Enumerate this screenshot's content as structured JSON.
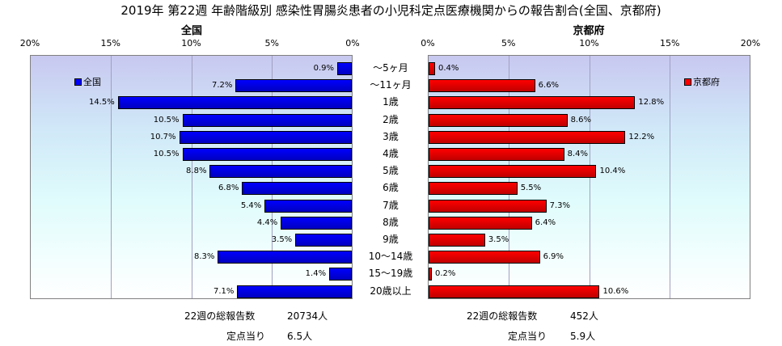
{
  "title": "2019年 第22週 年齢階級別 感染性胃腸炎患者の小児科定点医療機関からの報告割合(全国、京都府)",
  "left_panel": {
    "title": "全国",
    "legend": "全国",
    "ticks": [
      "20%",
      "15%",
      "10%",
      "5%",
      "0%"
    ]
  },
  "right_panel": {
    "title": "京都府",
    "legend": "京都府",
    "ticks": [
      "0%",
      "5%",
      "10%",
      "15%",
      "20%"
    ]
  },
  "colors": {
    "national": "#0000ff",
    "kyoto": "#ff0000"
  },
  "chart_data": {
    "type": "bar",
    "orientation": "horizontal-butterfly",
    "categories": [
      "～5ヶ月",
      "～11ヶ月",
      "1歳",
      "2歳",
      "3歳",
      "4歳",
      "5歳",
      "6歳",
      "7歳",
      "8歳",
      "9歳",
      "10～14歳",
      "15～19歳",
      "20歳以上"
    ],
    "series": [
      {
        "name": "全国",
        "values": [
          0.9,
          7.2,
          14.5,
          10.5,
          10.7,
          10.5,
          8.8,
          6.8,
          5.4,
          4.4,
          3.5,
          8.3,
          1.4,
          7.1
        ],
        "labels": [
          "0.9%",
          "7.2%",
          "14.5%",
          "10.5%",
          "10.7%",
          "10.5%",
          "8.8%",
          "6.8%",
          "5.4%",
          "4.4%",
          "3.5%",
          "8.3%",
          "1.4%",
          "7.1%"
        ]
      },
      {
        "name": "京都府",
        "values": [
          0.4,
          6.6,
          12.8,
          8.6,
          12.2,
          8.4,
          10.4,
          5.5,
          7.3,
          6.4,
          3.5,
          6.9,
          0.2,
          10.6
        ],
        "labels": [
          "0.4%",
          "6.6%",
          "12.8%",
          "8.6%",
          "12.2%",
          "8.4%",
          "10.4%",
          "5.5%",
          "7.3%",
          "6.4%",
          "3.5%",
          "6.9%",
          "0.2%",
          "10.6%"
        ]
      }
    ],
    "xlim": [
      0,
      20
    ],
    "unit": "%"
  },
  "footer": {
    "national_total_label": "22週の総報告数",
    "national_total_value": "20734人",
    "national_per_label": "定点当り",
    "national_per_value": "6.5人",
    "kyoto_total_label": "22週の総報告数",
    "kyoto_total_value": "452人",
    "kyoto_per_label": "定点当り",
    "kyoto_per_value": "5.9人"
  }
}
